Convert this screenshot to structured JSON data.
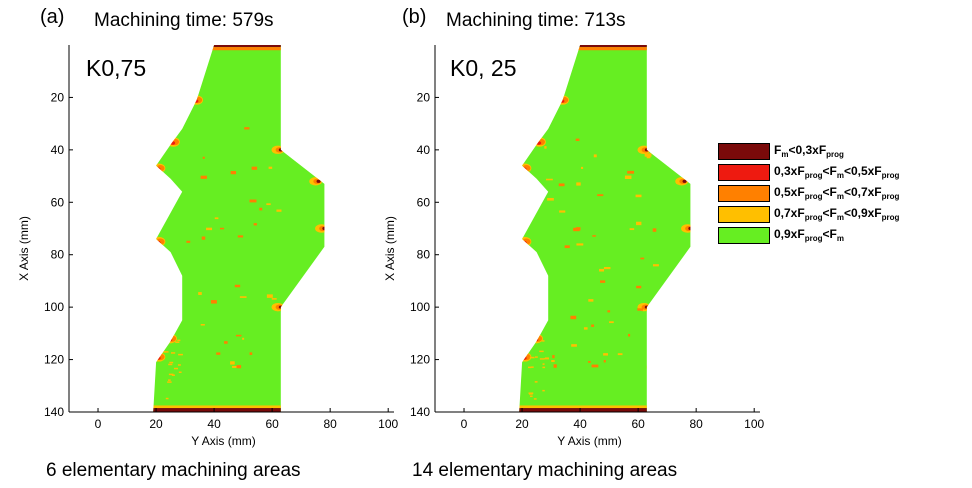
{
  "colors": {
    "c1": "#7a0a0a",
    "c2": "#ee1a10",
    "c3": "#ff8000",
    "c4": "#ffbf00",
    "c5": "#66ee22"
  },
  "legend": [
    {
      "color": "#7a0a0a",
      "parts": [
        [
          "F",
          ""
        ],
        [
          "m",
          "sub"
        ],
        [
          "<0,3xF",
          ""
        ],
        [
          "prog",
          "sub"
        ]
      ]
    },
    {
      "color": "#ee1a10",
      "parts": [
        [
          "0,3xF",
          ""
        ],
        [
          "prog",
          "sub"
        ],
        [
          "<F",
          ""
        ],
        [
          "m",
          "sub"
        ],
        [
          "<0,5xF",
          ""
        ],
        [
          "prog",
          "sub"
        ]
      ]
    },
    {
      "color": "#ff8000",
      "parts": [
        [
          "0,5xF",
          ""
        ],
        [
          "prog",
          "sub"
        ],
        [
          "<F",
          ""
        ],
        [
          "m",
          "sub"
        ],
        [
          "<0,7xF",
          ""
        ],
        [
          "prog",
          "sub"
        ]
      ]
    },
    {
      "color": "#ffbf00",
      "parts": [
        [
          "0,7xF",
          ""
        ],
        [
          "prog",
          "sub"
        ],
        [
          "<F",
          ""
        ],
        [
          "m",
          "sub"
        ],
        [
          "<0,9xF",
          ""
        ],
        [
          "prog",
          "sub"
        ]
      ]
    },
    {
      "color": "#66ee22",
      "parts": [
        [
          "0,9xF",
          ""
        ],
        [
          "prog",
          "sub"
        ],
        [
          "<F",
          ""
        ],
        [
          "m",
          "sub"
        ]
      ]
    }
  ],
  "chart_data": [
    {
      "type": "heatmap",
      "panel": "(a)",
      "title": "Machining time: 579s",
      "annotation": "K0,75",
      "caption": "6 elementary machining areas",
      "xlabel": "Y Axis (mm)",
      "ylabel": "X Axis (mm)",
      "xlim": [
        -10,
        102
      ],
      "ylim": [
        140,
        0
      ],
      "xticks": [
        "0",
        "20",
        "40",
        "60",
        "80",
        "100"
      ],
      "yticks": [
        "20",
        "40",
        "60",
        "80",
        "100",
        "120",
        "140"
      ],
      "shape_outline_mm": [
        [
          40,
          0
        ],
        [
          63,
          0
        ],
        [
          63,
          40
        ],
        [
          78,
          53
        ],
        [
          78,
          77
        ],
        [
          63,
          100
        ],
        [
          63,
          140
        ],
        [
          19,
          140
        ],
        [
          20,
          121
        ],
        [
          25,
          113
        ],
        [
          29,
          105
        ],
        [
          29,
          88
        ],
        [
          25,
          79
        ],
        [
          20,
          74
        ],
        [
          25,
          64
        ],
        [
          29,
          56
        ],
        [
          25,
          51
        ],
        [
          20,
          46
        ],
        [
          25,
          38
        ],
        [
          29,
          32
        ],
        [
          34,
          21
        ],
        [
          40,
          0
        ]
      ]
    },
    {
      "type": "heatmap",
      "panel": "(b)",
      "title": "Machining time: 713s",
      "annotation": "K0, 25",
      "caption": "14 elementary machining areas",
      "xlabel": "Y Axis (mm)",
      "ylabel": "X Axis (mm)",
      "xlim": [
        -10,
        102
      ],
      "ylim": [
        140,
        0
      ],
      "xticks": [
        "0",
        "20",
        "40",
        "60",
        "80",
        "100"
      ],
      "yticks": [
        "20",
        "40",
        "60",
        "80",
        "100",
        "120",
        "140"
      ],
      "shape_outline_mm": [
        [
          40,
          0
        ],
        [
          63,
          0
        ],
        [
          63,
          40
        ],
        [
          78,
          53
        ],
        [
          78,
          77
        ],
        [
          63,
          100
        ],
        [
          63,
          140
        ],
        [
          19,
          140
        ],
        [
          20,
          121
        ],
        [
          25,
          113
        ],
        [
          29,
          105
        ],
        [
          29,
          88
        ],
        [
          25,
          79
        ],
        [
          20,
          74
        ],
        [
          25,
          64
        ],
        [
          29,
          56
        ],
        [
          25,
          51
        ],
        [
          20,
          46
        ],
        [
          25,
          38
        ],
        [
          29,
          32
        ],
        [
          34,
          21
        ],
        [
          40,
          0
        ]
      ]
    }
  ]
}
